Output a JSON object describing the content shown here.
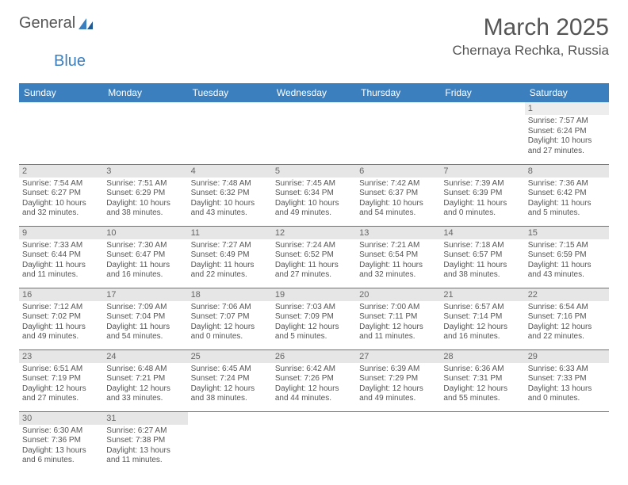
{
  "brand": {
    "part1": "General",
    "part2": "Blue"
  },
  "title": "March 2025",
  "location": "Chernaya Rechka, Russia",
  "colors": {
    "header_bg": "#3b7fbf",
    "header_fg": "#ffffff",
    "daynum_bg": "#e6e6e6",
    "text": "#555555",
    "rule": "#3b7fbf"
  },
  "fonts": {
    "title_size": 30,
    "location_size": 17,
    "dayhead_size": 12,
    "daynum_size": 11,
    "body_size": 10
  },
  "day_headers": [
    "Sunday",
    "Monday",
    "Tuesday",
    "Wednesday",
    "Thursday",
    "Friday",
    "Saturday"
  ],
  "weeks": [
    [
      {
        "n": "",
        "lines": []
      },
      {
        "n": "",
        "lines": []
      },
      {
        "n": "",
        "lines": []
      },
      {
        "n": "",
        "lines": []
      },
      {
        "n": "",
        "lines": []
      },
      {
        "n": "",
        "lines": []
      },
      {
        "n": "1",
        "lines": [
          "Sunrise: 7:57 AM",
          "Sunset: 6:24 PM",
          "Daylight: 10 hours and 27 minutes."
        ]
      }
    ],
    [
      {
        "n": "2",
        "lines": [
          "Sunrise: 7:54 AM",
          "Sunset: 6:27 PM",
          "Daylight: 10 hours and 32 minutes."
        ]
      },
      {
        "n": "3",
        "lines": [
          "Sunrise: 7:51 AM",
          "Sunset: 6:29 PM",
          "Daylight: 10 hours and 38 minutes."
        ]
      },
      {
        "n": "4",
        "lines": [
          "Sunrise: 7:48 AM",
          "Sunset: 6:32 PM",
          "Daylight: 10 hours and 43 minutes."
        ]
      },
      {
        "n": "5",
        "lines": [
          "Sunrise: 7:45 AM",
          "Sunset: 6:34 PM",
          "Daylight: 10 hours and 49 minutes."
        ]
      },
      {
        "n": "6",
        "lines": [
          "Sunrise: 7:42 AM",
          "Sunset: 6:37 PM",
          "Daylight: 10 hours and 54 minutes."
        ]
      },
      {
        "n": "7",
        "lines": [
          "Sunrise: 7:39 AM",
          "Sunset: 6:39 PM",
          "Daylight: 11 hours and 0 minutes."
        ]
      },
      {
        "n": "8",
        "lines": [
          "Sunrise: 7:36 AM",
          "Sunset: 6:42 PM",
          "Daylight: 11 hours and 5 minutes."
        ]
      }
    ],
    [
      {
        "n": "9",
        "lines": [
          "Sunrise: 7:33 AM",
          "Sunset: 6:44 PM",
          "Daylight: 11 hours and 11 minutes."
        ]
      },
      {
        "n": "10",
        "lines": [
          "Sunrise: 7:30 AM",
          "Sunset: 6:47 PM",
          "Daylight: 11 hours and 16 minutes."
        ]
      },
      {
        "n": "11",
        "lines": [
          "Sunrise: 7:27 AM",
          "Sunset: 6:49 PM",
          "Daylight: 11 hours and 22 minutes."
        ]
      },
      {
        "n": "12",
        "lines": [
          "Sunrise: 7:24 AM",
          "Sunset: 6:52 PM",
          "Daylight: 11 hours and 27 minutes."
        ]
      },
      {
        "n": "13",
        "lines": [
          "Sunrise: 7:21 AM",
          "Sunset: 6:54 PM",
          "Daylight: 11 hours and 32 minutes."
        ]
      },
      {
        "n": "14",
        "lines": [
          "Sunrise: 7:18 AM",
          "Sunset: 6:57 PM",
          "Daylight: 11 hours and 38 minutes."
        ]
      },
      {
        "n": "15",
        "lines": [
          "Sunrise: 7:15 AM",
          "Sunset: 6:59 PM",
          "Daylight: 11 hours and 43 minutes."
        ]
      }
    ],
    [
      {
        "n": "16",
        "lines": [
          "Sunrise: 7:12 AM",
          "Sunset: 7:02 PM",
          "Daylight: 11 hours and 49 minutes."
        ]
      },
      {
        "n": "17",
        "lines": [
          "Sunrise: 7:09 AM",
          "Sunset: 7:04 PM",
          "Daylight: 11 hours and 54 minutes."
        ]
      },
      {
        "n": "18",
        "lines": [
          "Sunrise: 7:06 AM",
          "Sunset: 7:07 PM",
          "Daylight: 12 hours and 0 minutes."
        ]
      },
      {
        "n": "19",
        "lines": [
          "Sunrise: 7:03 AM",
          "Sunset: 7:09 PM",
          "Daylight: 12 hours and 5 minutes."
        ]
      },
      {
        "n": "20",
        "lines": [
          "Sunrise: 7:00 AM",
          "Sunset: 7:11 PM",
          "Daylight: 12 hours and 11 minutes."
        ]
      },
      {
        "n": "21",
        "lines": [
          "Sunrise: 6:57 AM",
          "Sunset: 7:14 PM",
          "Daylight: 12 hours and 16 minutes."
        ]
      },
      {
        "n": "22",
        "lines": [
          "Sunrise: 6:54 AM",
          "Sunset: 7:16 PM",
          "Daylight: 12 hours and 22 minutes."
        ]
      }
    ],
    [
      {
        "n": "23",
        "lines": [
          "Sunrise: 6:51 AM",
          "Sunset: 7:19 PM",
          "Daylight: 12 hours and 27 minutes."
        ]
      },
      {
        "n": "24",
        "lines": [
          "Sunrise: 6:48 AM",
          "Sunset: 7:21 PM",
          "Daylight: 12 hours and 33 minutes."
        ]
      },
      {
        "n": "25",
        "lines": [
          "Sunrise: 6:45 AM",
          "Sunset: 7:24 PM",
          "Daylight: 12 hours and 38 minutes."
        ]
      },
      {
        "n": "26",
        "lines": [
          "Sunrise: 6:42 AM",
          "Sunset: 7:26 PM",
          "Daylight: 12 hours and 44 minutes."
        ]
      },
      {
        "n": "27",
        "lines": [
          "Sunrise: 6:39 AM",
          "Sunset: 7:29 PM",
          "Daylight: 12 hours and 49 minutes."
        ]
      },
      {
        "n": "28",
        "lines": [
          "Sunrise: 6:36 AM",
          "Sunset: 7:31 PM",
          "Daylight: 12 hours and 55 minutes."
        ]
      },
      {
        "n": "29",
        "lines": [
          "Sunrise: 6:33 AM",
          "Sunset: 7:33 PM",
          "Daylight: 13 hours and 0 minutes."
        ]
      }
    ],
    [
      {
        "n": "30",
        "lines": [
          "Sunrise: 6:30 AM",
          "Sunset: 7:36 PM",
          "Daylight: 13 hours and 6 minutes."
        ]
      },
      {
        "n": "31",
        "lines": [
          "Sunrise: 6:27 AM",
          "Sunset: 7:38 PM",
          "Daylight: 13 hours and 11 minutes."
        ]
      },
      {
        "n": "",
        "lines": []
      },
      {
        "n": "",
        "lines": []
      },
      {
        "n": "",
        "lines": []
      },
      {
        "n": "",
        "lines": []
      },
      {
        "n": "",
        "lines": []
      }
    ]
  ]
}
